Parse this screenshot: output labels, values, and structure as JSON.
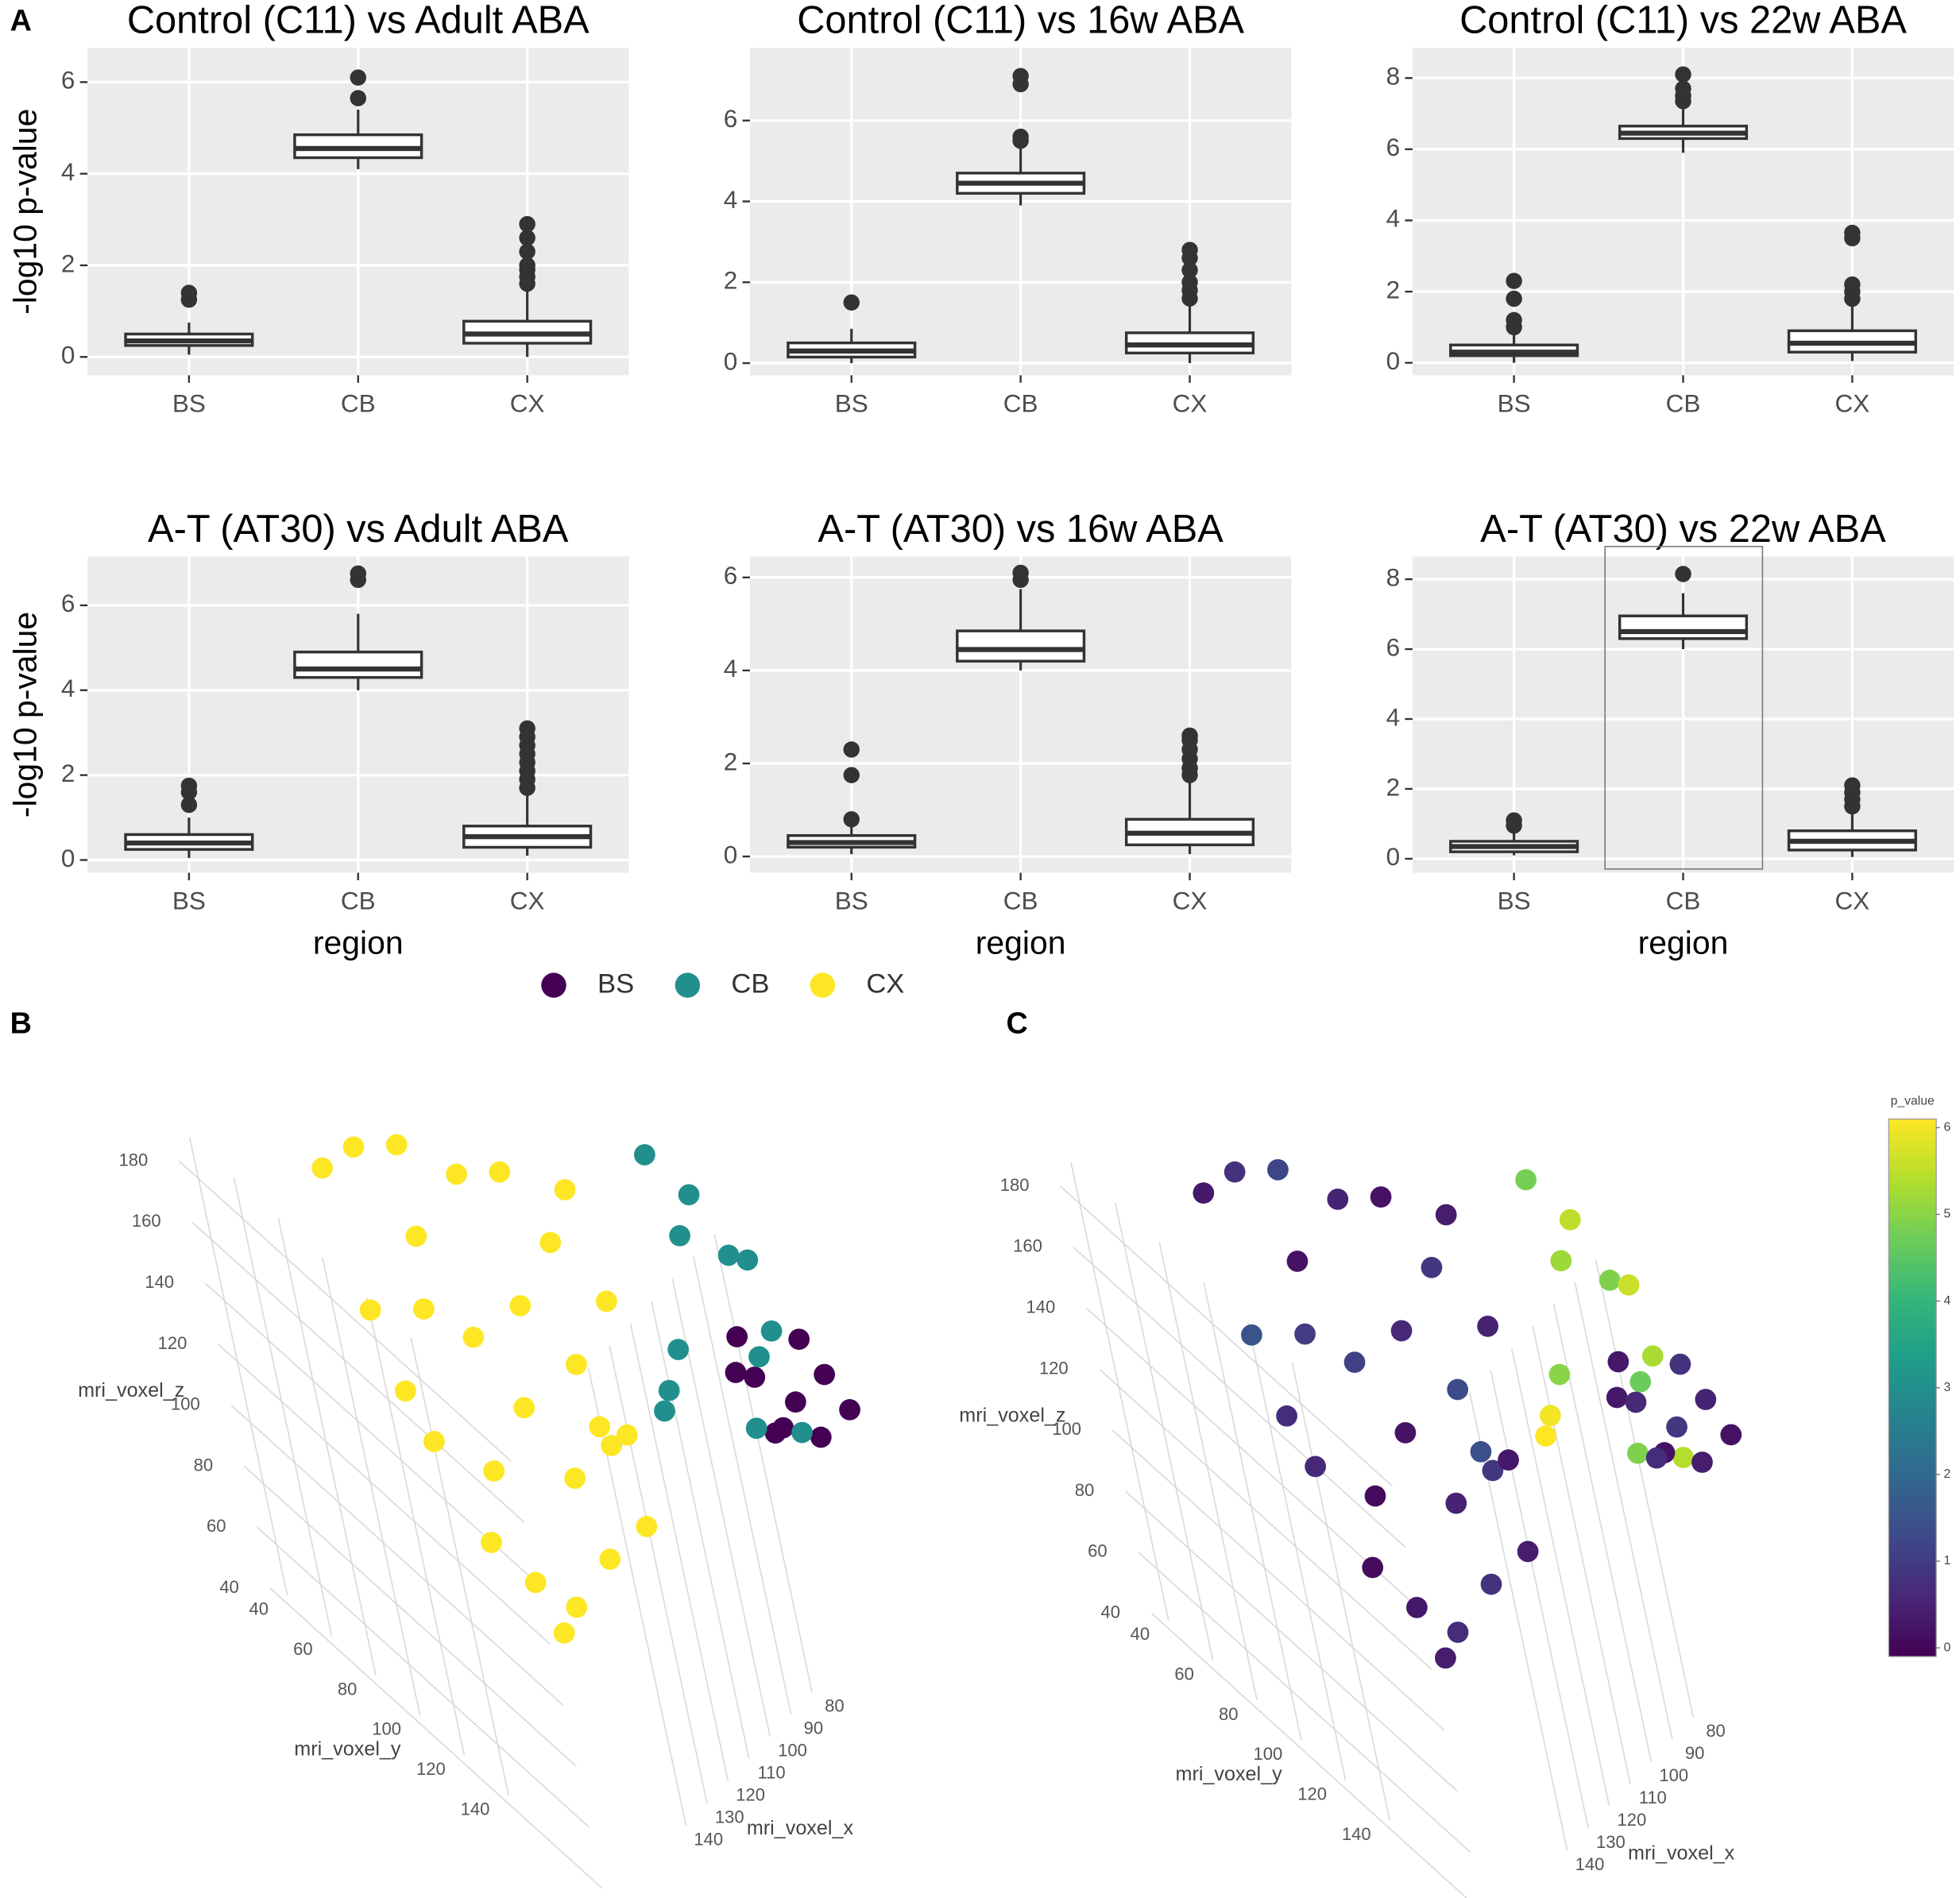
{
  "panel_labels": [
    "A",
    "B",
    "C"
  ],
  "chart_data": [
    {
      "type": "box",
      "title": "Control (C11) vs Adult ABA",
      "ylabel": "-log10 p-value",
      "categories": [
        "BS",
        "CB",
        "CX"
      ],
      "ylim": [
        -0.4,
        6.75
      ],
      "yticks": [
        0,
        2,
        4,
        6
      ],
      "grid": true,
      "boxes": [
        {
          "min": 0.05,
          "q1": 0.25,
          "median": 0.35,
          "q3": 0.5,
          "max": 0.75,
          "outliers": [
            1.25,
            1.4
          ]
        },
        {
          "min": 4.1,
          "q1": 4.35,
          "median": 4.55,
          "q3": 4.85,
          "max": 5.4,
          "outliers": [
            5.65,
            6.1
          ]
        },
        {
          "min": 0.0,
          "q1": 0.3,
          "median": 0.5,
          "q3": 0.78,
          "max": 1.5,
          "outliers": [
            1.6,
            1.75,
            1.9,
            2.0,
            2.3,
            2.6,
            2.9
          ]
        }
      ]
    },
    {
      "type": "box",
      "title": "Control (C11) vs 16w ABA",
      "categories": [
        "BS",
        "CB",
        "CX"
      ],
      "ylim": [
        -0.3,
        7.8
      ],
      "yticks": [
        0,
        2,
        4,
        6
      ],
      "grid": true,
      "boxes": [
        {
          "min": 0.0,
          "q1": 0.15,
          "median": 0.3,
          "q3": 0.5,
          "max": 0.85,
          "outliers": [
            1.5
          ]
        },
        {
          "min": 3.9,
          "q1": 4.2,
          "median": 4.45,
          "q3": 4.7,
          "max": 5.4,
          "outliers": [
            5.5,
            5.6,
            6.9,
            7.1
          ]
        },
        {
          "min": 0.0,
          "q1": 0.25,
          "median": 0.45,
          "q3": 0.75,
          "max": 1.5,
          "outliers": [
            1.6,
            1.8,
            2.0,
            2.3,
            2.6,
            2.8
          ]
        }
      ]
    },
    {
      "type": "box",
      "title": "Control (C11) vs 22w ABA",
      "categories": [
        "BS",
        "CB",
        "CX"
      ],
      "ylim": [
        -0.35,
        8.85
      ],
      "yticks": [
        0,
        2,
        4,
        6,
        8
      ],
      "grid": true,
      "boxes": [
        {
          "min": 0.0,
          "q1": 0.2,
          "median": 0.3,
          "q3": 0.5,
          "max": 0.8,
          "outliers": [
            1.0,
            1.2,
            1.8,
            2.3
          ]
        },
        {
          "min": 5.9,
          "q1": 6.3,
          "median": 6.45,
          "q3": 6.65,
          "max": 7.2,
          "outliers": [
            7.35,
            7.5,
            7.7,
            8.1
          ]
        },
        {
          "min": 0.05,
          "q1": 0.3,
          "median": 0.55,
          "q3": 0.9,
          "max": 1.7,
          "outliers": [
            1.8,
            2.0,
            2.2,
            3.5,
            3.65
          ]
        }
      ]
    },
    {
      "type": "box",
      "title": "A-T (AT30) vs Adult ABA",
      "ylabel": "-log10 p-value",
      "xlabel": "region",
      "categories": [
        "BS",
        "CB",
        "CX"
      ],
      "ylim": [
        -0.3,
        7.15
      ],
      "yticks": [
        0,
        2,
        4,
        6
      ],
      "grid": true,
      "boxes": [
        {
          "min": 0.05,
          "q1": 0.25,
          "median": 0.4,
          "q3": 0.6,
          "max": 1.0,
          "outliers": [
            1.3,
            1.6,
            1.75
          ]
        },
        {
          "min": 4.0,
          "q1": 4.3,
          "median": 4.5,
          "q3": 4.9,
          "max": 5.8,
          "outliers": [
            6.6,
            6.75
          ]
        },
        {
          "min": 0.1,
          "q1": 0.3,
          "median": 0.55,
          "q3": 0.8,
          "max": 1.6,
          "outliers": [
            1.7,
            1.9,
            2.1,
            2.3,
            2.5,
            2.7,
            2.9,
            3.1
          ]
        }
      ]
    },
    {
      "type": "box",
      "title": "A-T (AT30) vs 16w ABA",
      "xlabel": "region",
      "categories": [
        "BS",
        "CB",
        "CX"
      ],
      "ylim": [
        -0.35,
        6.45
      ],
      "yticks": [
        0,
        2,
        4,
        6
      ],
      "grid": true,
      "boxes": [
        {
          "min": 0.05,
          "q1": 0.2,
          "median": 0.3,
          "q3": 0.45,
          "max": 0.7,
          "outliers": [
            0.8,
            1.75,
            2.3
          ]
        },
        {
          "min": 4.0,
          "q1": 4.2,
          "median": 4.45,
          "q3": 4.85,
          "max": 5.75,
          "outliers": [
            5.95,
            6.1
          ]
        },
        {
          "min": 0.05,
          "q1": 0.25,
          "median": 0.5,
          "q3": 0.8,
          "max": 1.65,
          "outliers": [
            1.75,
            1.9,
            2.1,
            2.3,
            2.5,
            2.6
          ]
        }
      ]
    },
    {
      "type": "box",
      "title": "A-T (AT30) vs 22w ABA",
      "xlabel": "region",
      "categories": [
        "BS",
        "CB",
        "CX"
      ],
      "ylim": [
        -0.4,
        8.65
      ],
      "yticks": [
        0,
        2,
        4,
        6,
        8
      ],
      "grid": true,
      "boxes": [
        {
          "min": 0.1,
          "q1": 0.2,
          "median": 0.35,
          "q3": 0.5,
          "max": 0.8,
          "outliers": [
            0.95,
            1.1
          ]
        },
        {
          "min": 6.0,
          "q1": 6.3,
          "median": 6.5,
          "q3": 6.95,
          "max": 7.6,
          "outliers": [
            8.15
          ]
        },
        {
          "min": 0.05,
          "q1": 0.25,
          "median": 0.5,
          "q3": 0.8,
          "max": 1.4,
          "outliers": [
            1.5,
            1.7,
            1.9,
            2.1
          ]
        }
      ]
    },
    {
      "type": "scatter3d",
      "xlabel": "mri_voxel_x",
      "ylabel": "mri_voxel_y",
      "zlabel": "mri_voxel_z",
      "xticks": [
        80,
        90,
        100,
        110,
        120,
        130,
        140
      ],
      "yticks": [
        40,
        60,
        80,
        100,
        120,
        140
      ],
      "zticks": [
        40,
        60,
        80,
        100,
        120,
        140,
        160,
        180
      ],
      "legend": "top",
      "series": [
        {
          "name": "BS",
          "color": "#440154",
          "x": [
            90,
            90,
            90,
            90,
            90,
            80,
            80,
            90,
            80,
            90
          ],
          "y": [
            165,
            175,
            185,
            195,
            205,
            200,
            190,
            170,
            210,
            180
          ],
          "z": [
            115,
            120,
            110,
            125,
            120,
            130,
            135,
            130,
            125,
            105
          ]
        },
        {
          "name": "CB",
          "color": "#21908C",
          "x": [
            90,
            90,
            90,
            90,
            90,
            100,
            100,
            90,
            90,
            100,
            90,
            90
          ],
          "y": [
            150,
            140,
            160,
            175,
            185,
            150,
            140,
            180,
            190,
            135,
            170,
            195
          ],
          "z": [
            150,
            170,
            170,
            160,
            165,
            120,
            100,
            130,
            145,
            90,
            100,
            115
          ]
        },
        {
          "name": "CX",
          "color": "#FDE725",
          "x": [
            140,
            140,
            130,
            130,
            120,
            120,
            110,
            140,
            140,
            140,
            140,
            140,
            130,
            130,
            130,
            120,
            120,
            120,
            130,
            130,
            140,
            120,
            130,
            140,
            110,
            140,
            130,
            140
          ],
          "y": [
            30,
            50,
            60,
            90,
            100,
            120,
            120,
            40,
            60,
            80,
            100,
            120,
            80,
            100,
            120,
            130,
            140,
            120,
            110,
            60,
            70,
            140,
            130,
            90,
            130,
            110,
            140,
            50
          ],
          "z": [
            130,
            150,
            150,
            160,
            160,
            150,
            160,
            90,
            60,
            40,
            40,
            45,
            100,
            90,
            80,
            90,
            70,
            110,
            130,
            120,
            110,
            100,
            60,
            70,
            130,
            30,
            110,
            70
          ]
        }
      ]
    },
    {
      "type": "scatter3d",
      "xlabel": "mri_voxel_x",
      "ylabel": "mri_voxel_y",
      "zlabel": "mri_voxel_z",
      "xticks": [
        80,
        90,
        100,
        110,
        120,
        130,
        140
      ],
      "yticks": [
        40,
        60,
        80,
        100,
        120,
        140
      ],
      "zticks": [
        40,
        60,
        80,
        100,
        120,
        140,
        160,
        180
      ],
      "x": [
        140,
        140,
        130,
        130,
        120,
        120,
        110,
        140,
        140,
        140,
        140,
        140,
        130,
        130,
        130,
        120,
        120,
        120,
        130,
        130,
        140,
        120,
        130,
        140,
        110,
        140,
        130,
        140,
        90,
        90,
        90,
        90,
        90,
        100,
        100,
        90,
        90,
        100,
        90,
        90,
        90,
        90,
        90,
        90,
        90,
        80,
        80,
        90,
        80,
        90
      ],
      "y": [
        30,
        50,
        60,
        90,
        100,
        120,
        120,
        40,
        60,
        80,
        100,
        120,
        80,
        100,
        120,
        130,
        140,
        120,
        110,
        60,
        70,
        140,
        130,
        90,
        130,
        110,
        140,
        50,
        150,
        140,
        160,
        175,
        185,
        150,
        140,
        180,
        190,
        135,
        170,
        195,
        165,
        175,
        185,
        195,
        205,
        200,
        190,
        170,
        210,
        180
      ],
      "z": [
        130,
        150,
        150,
        160,
        160,
        150,
        160,
        90,
        60,
        40,
        40,
        45,
        100,
        90,
        80,
        90,
        70,
        110,
        130,
        120,
        110,
        100,
        60,
        70,
        130,
        30,
        110,
        70,
        150,
        170,
        170,
        160,
        165,
        120,
        100,
        130,
        145,
        90,
        100,
        115,
        115,
        120,
        110,
        125,
        120,
        130,
        135,
        130,
        125,
        105
      ],
      "values": [
        0.3,
        0.8,
        1.2,
        0.5,
        0.2,
        0.9,
        0.4,
        1.5,
        0.6,
        0.1,
        0.3,
        0.7,
        1.1,
        0.2,
        0.5,
        0.9,
        0.4,
        1.3,
        0.6,
        0.2,
        1.0,
        0.3,
        0.8,
        0.1,
        0.5,
        0.4,
        1.4,
        0.7,
        5.2,
        4.8,
        5.5,
        4.9,
        5.6,
        5.0,
        6.0,
        4.7,
        5.3,
        6.1,
        4.9,
        5.4,
        0.3,
        0.6,
        0.2,
        0.9,
        0.4,
        0.5,
        0.8,
        0.3,
        0.2,
        0.7
      ],
      "colorscale": [
        "#440154",
        "#482878",
        "#3E4A89",
        "#31688E",
        "#26828E",
        "#1F9E89",
        "#35B779",
        "#6DCD59",
        "#B4DE2C",
        "#FDE725"
      ],
      "colorbar": {
        "title": "p_value",
        "lim": [
          -0.1,
          6.1
        ],
        "ticks": [
          0,
          1,
          2,
          3,
          4,
          5,
          6
        ]
      }
    }
  ]
}
